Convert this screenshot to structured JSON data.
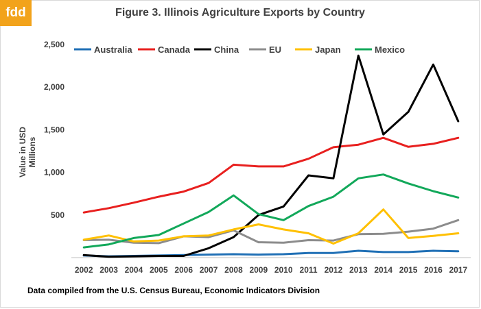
{
  "logo": {
    "text": "fdd"
  },
  "source_note": "Data compiled from the U.S. Census Bureau, Economic Indicators Division",
  "chart_data": {
    "type": "line",
    "title": "Figure 3. Illinois Agriculture Exports by Country",
    "ylabel": [
      "Value in USD",
      "Millions"
    ],
    "xlabel": "",
    "ylim": [
      0,
      2500
    ],
    "yticks": [
      500,
      1000,
      1500,
      2000,
      2500
    ],
    "ytick_labels": [
      "500",
      "1,000",
      "1,500",
      "2,000",
      "2,500"
    ],
    "grid": false,
    "legend_position": "top",
    "x": [
      "2002",
      "2003",
      "2004",
      "2005",
      "2006",
      "2007",
      "2008",
      "2009",
      "2010",
      "2011",
      "2012",
      "2013",
      "2014",
      "2015",
      "2016",
      "2017"
    ],
    "series": [
      {
        "name": "Australia",
        "color": "#1f6fb5",
        "values": [
          25,
          15,
          20,
          25,
          30,
          35,
          40,
          35,
          40,
          55,
          55,
          80,
          65,
          65,
          80,
          75
        ]
      },
      {
        "name": "Canada",
        "color": "#e8201f",
        "values": [
          530,
          580,
          645,
          715,
          775,
          875,
          1090,
          1070,
          1070,
          1160,
          1295,
          1325,
          1405,
          1300,
          1335,
          1405
        ]
      },
      {
        "name": "China",
        "color": "#000000",
        "values": [
          30,
          10,
          15,
          20,
          20,
          110,
          240,
          500,
          600,
          965,
          930,
          2370,
          1445,
          1710,
          2265,
          1600
        ]
      },
      {
        "name": "EU",
        "color": "#8c8c8c",
        "values": [
          205,
          210,
          175,
          170,
          250,
          240,
          320,
          180,
          175,
          205,
          200,
          275,
          280,
          305,
          340,
          440
        ]
      },
      {
        "name": "Japan",
        "color": "#ffc000",
        "values": [
          210,
          260,
          190,
          200,
          250,
          260,
          330,
          390,
          330,
          285,
          165,
          285,
          565,
          230,
          255,
          285
        ]
      },
      {
        "name": "Mexico",
        "color": "#12a85a",
        "values": [
          120,
          155,
          230,
          265,
          400,
          535,
          730,
          510,
          440,
          605,
          715,
          930,
          975,
          870,
          780,
          705
        ]
      }
    ]
  }
}
